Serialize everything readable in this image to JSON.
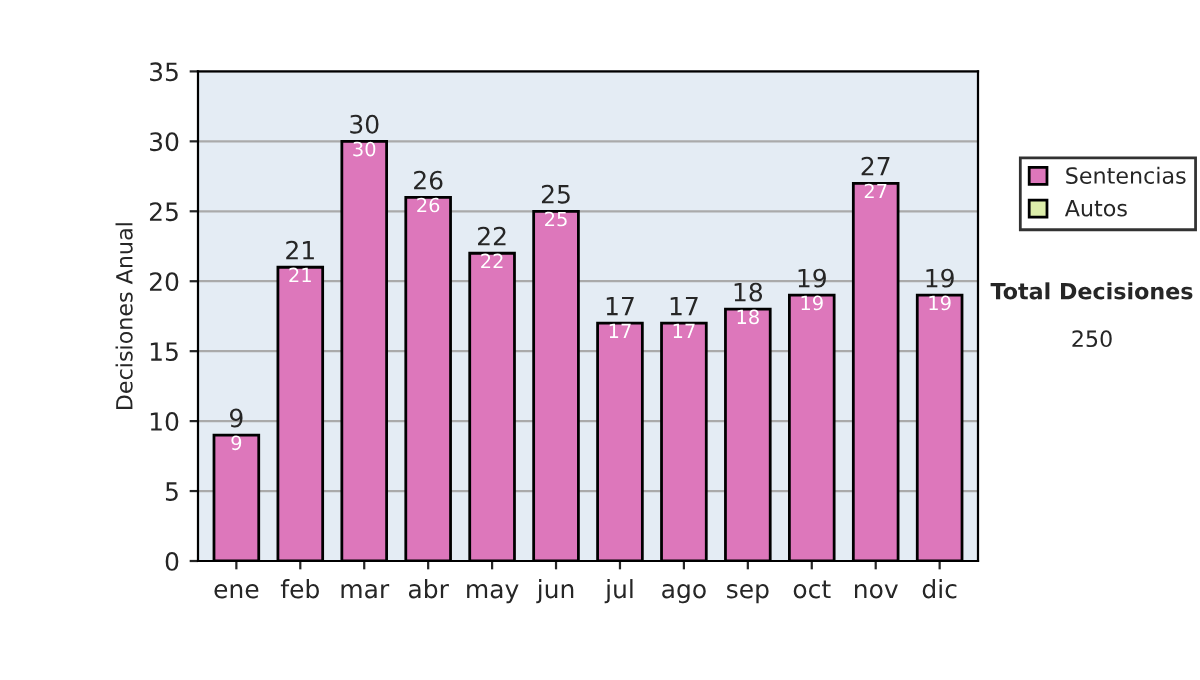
{
  "chart_data": {
    "type": "bar",
    "ylabel": "Decisiones Anual",
    "categories": [
      "ene",
      "feb",
      "mar",
      "abr",
      "may",
      "jun",
      "jul",
      "ago",
      "sep",
      "oct",
      "nov",
      "dic"
    ],
    "series": [
      {
        "name": "Sentencias",
        "color": "#dd77bb",
        "values": [
          9,
          21,
          30,
          26,
          22,
          25,
          17,
          17,
          18,
          19,
          27,
          19
        ]
      },
      {
        "name": "Autos",
        "color": "#ddeeaa",
        "values": [
          null,
          null,
          null,
          null,
          null,
          null,
          null,
          null,
          null,
          null,
          null,
          null
        ]
      }
    ],
    "stacked": true,
    "data_labels": true,
    "totals": [
      "9",
      "21",
      "30",
      "26",
      "22",
      "25",
      "17",
      "17",
      "18",
      "19",
      "27",
      "19"
    ],
    "ylim": [
      0,
      35
    ],
    "yticks": [
      0,
      5,
      10,
      15,
      20,
      25,
      30,
      35
    ],
    "grid": "y",
    "legend": "right",
    "annotations": [
      "Total Decisiones",
      "250"
    ]
  }
}
